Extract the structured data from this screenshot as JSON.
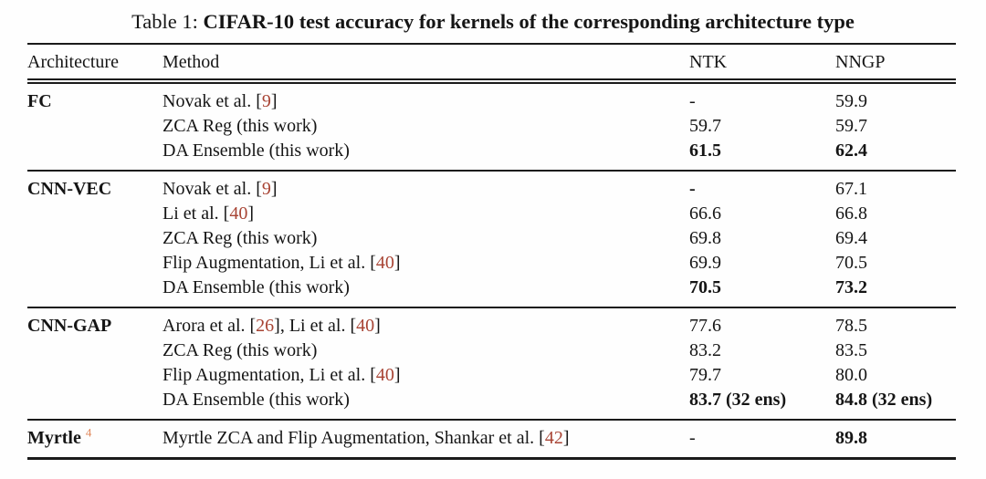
{
  "caption": {
    "prefix": "Table 1: ",
    "title": "CIFAR-10 test accuracy for kernels of the corresponding architecture type"
  },
  "colors": {
    "text": "#151515",
    "citation_link": "#a84434",
    "footnote_marker": "#e0875a",
    "rule": "#1a1a1a"
  },
  "table": {
    "headers": [
      "Architecture",
      "Method",
      "NTK",
      "NNGP"
    ],
    "sections": [
      {
        "architecture": {
          "name": "FC",
          "footnote": null
        },
        "rows": [
          {
            "method": [
              "Novak et al. [",
              {
                "cite": "9"
              },
              "]"
            ],
            "ntk": "-",
            "ntk_bold": false,
            "nngp": "59.9",
            "nngp_bold": false
          },
          {
            "method": [
              "ZCA Reg (this work)"
            ],
            "ntk": "59.7",
            "ntk_bold": false,
            "nngp": "59.7",
            "nngp_bold": false
          },
          {
            "method": [
              "DA Ensemble (this work)"
            ],
            "ntk": "61.5",
            "ntk_bold": true,
            "nngp": "62.4",
            "nngp_bold": true
          }
        ]
      },
      {
        "architecture": {
          "name": "CNN-VEC",
          "footnote": null
        },
        "rows": [
          {
            "method": [
              "Novak et al. [",
              {
                "cite": "9"
              },
              "]"
            ],
            "ntk": "-",
            "ntk_bold": true,
            "nngp": "67.1",
            "nngp_bold": false
          },
          {
            "method": [
              "Li et al. [",
              {
                "cite": "40"
              },
              "]"
            ],
            "ntk": "66.6",
            "ntk_bold": false,
            "nngp": "66.8",
            "nngp_bold": false
          },
          {
            "method": [
              "ZCA Reg (this work)"
            ],
            "ntk": "69.8",
            "ntk_bold": false,
            "nngp": "69.4",
            "nngp_bold": false
          },
          {
            "method": [
              "Flip Augmentation, Li et al. [",
              {
                "cite": "40"
              },
              "]"
            ],
            "ntk": "69.9",
            "ntk_bold": false,
            "nngp": "70.5",
            "nngp_bold": false
          },
          {
            "method": [
              "DA Ensemble (this work)"
            ],
            "ntk": "70.5",
            "ntk_bold": true,
            "nngp": "73.2",
            "nngp_bold": true
          }
        ]
      },
      {
        "architecture": {
          "name": "CNN-GAP",
          "footnote": null
        },
        "rows": [
          {
            "method": [
              "Arora et al. [",
              {
                "cite": "26"
              },
              "], Li et al. [",
              {
                "cite": "40"
              },
              "]"
            ],
            "ntk": "77.6",
            "ntk_bold": false,
            "nngp": "78.5",
            "nngp_bold": false
          },
          {
            "method": [
              "ZCA Reg (this work)"
            ],
            "ntk": "83.2",
            "ntk_bold": false,
            "nngp": "83.5",
            "nngp_bold": false
          },
          {
            "method": [
              "Flip Augmentation, Li et al. [",
              {
                "cite": "40"
              },
              "]"
            ],
            "ntk": "79.7",
            "ntk_bold": false,
            "nngp": "80.0",
            "nngp_bold": false
          },
          {
            "method": [
              "DA Ensemble (this work)"
            ],
            "ntk": "83.7 (32 ens)",
            "ntk_bold": true,
            "nngp": "84.8 (32 ens)",
            "nngp_bold": true
          }
        ]
      },
      {
        "architecture": {
          "name": "Myrtle",
          "footnote": "4"
        },
        "rows": [
          {
            "method": [
              "Myrtle ZCA and Flip Augmentation, Shankar et al. [",
              {
                "cite": "42"
              },
              "]"
            ],
            "ntk": "-",
            "ntk_bold": false,
            "nngp": "89.8",
            "nngp_bold": true
          }
        ]
      }
    ]
  }
}
